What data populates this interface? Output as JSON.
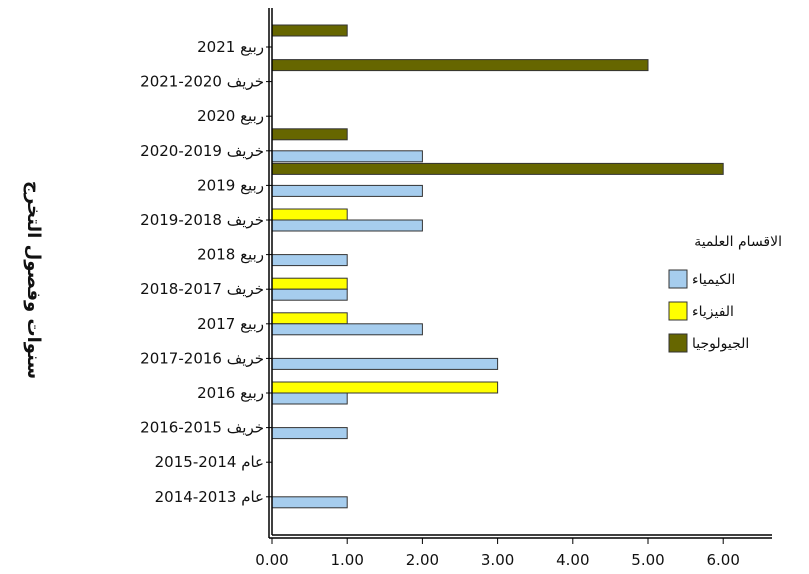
{
  "chart_data": {
    "type": "bar",
    "orientation": "horizontal",
    "ylabel": "سنوات وفصول التخرج",
    "xlabel": "",
    "xlim": [
      0,
      6.6
    ],
    "x_ticks": [
      "0.00",
      "1.00",
      "2.00",
      "3.00",
      "4.00",
      "5.00",
      "6.00"
    ],
    "categories": [
      "ربيع 2021",
      "خريف 2020-2021",
      "ربيع 2020",
      "خريف 2019-2020",
      "ربيع 2019",
      "خريف 2018-2019",
      "ربيع 2018",
      "خريف 2017-2018",
      "ربيع 2017",
      "خريف 2016-2017",
      "ربيع 2016",
      "خريف 2015-2016",
      "عام 2014-2015",
      "عام 2013-2014"
    ],
    "series": [
      {
        "name": "الجيولوجيا",
        "color": "#666600",
        "values": [
          1,
          5,
          0,
          1,
          6,
          0,
          0,
          0,
          0,
          0,
          0,
          0,
          0,
          0
        ]
      },
      {
        "name": "الفيزياء",
        "color": "#ffff00",
        "values": [
          0,
          0,
          0,
          0,
          0,
          1,
          0,
          1,
          1,
          0,
          3,
          0,
          0,
          0
        ]
      },
      {
        "name": "الكيمياء",
        "color": "#a6cdee",
        "values": [
          0,
          0,
          0,
          2,
          2,
          2,
          1,
          1,
          2,
          3,
          1,
          1,
          0,
          1
        ]
      }
    ],
    "legend": {
      "title": "الاقسام العلمية",
      "placement": "right",
      "entries": [
        {
          "name": "الكيمياء",
          "color": "#a6cdee"
        },
        {
          "name": "الفيزياء",
          "color": "#ffff00"
        },
        {
          "name": "الجيولوجيا",
          "color": "#666600"
        }
      ]
    },
    "grid": false
  }
}
